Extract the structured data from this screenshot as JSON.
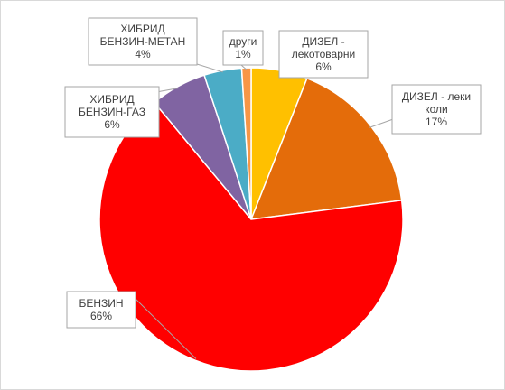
{
  "chart_data": {
    "type": "pie",
    "title": "",
    "slices": [
      {
        "label": [
          "ДИЗЕЛ -",
          "лекотоварни"
        ],
        "value_label": "6%",
        "value": 6,
        "color": "#ffc000"
      },
      {
        "label": [
          "ДИЗЕЛ - леки",
          "коли"
        ],
        "value_label": "17%",
        "value": 17,
        "color": "#e46c0a"
      },
      {
        "label": [
          "БЕНЗИН"
        ],
        "value_label": "66%",
        "value": 66,
        "color": "#ff0000"
      },
      {
        "label": [
          "ХИБРИД",
          "БЕНЗИН-ГАЗ"
        ],
        "value_label": "6%",
        "value": 6,
        "color": "#8064a2"
      },
      {
        "label": [
          "ХИБРИД",
          "БЕНЗИН-МЕТАН"
        ],
        "value_label": "4%",
        "value": 4,
        "color": "#4bacc6"
      },
      {
        "label": [
          "други"
        ],
        "value_label": "1%",
        "value": 1,
        "color": "#f79646"
      }
    ],
    "legend": "none"
  }
}
